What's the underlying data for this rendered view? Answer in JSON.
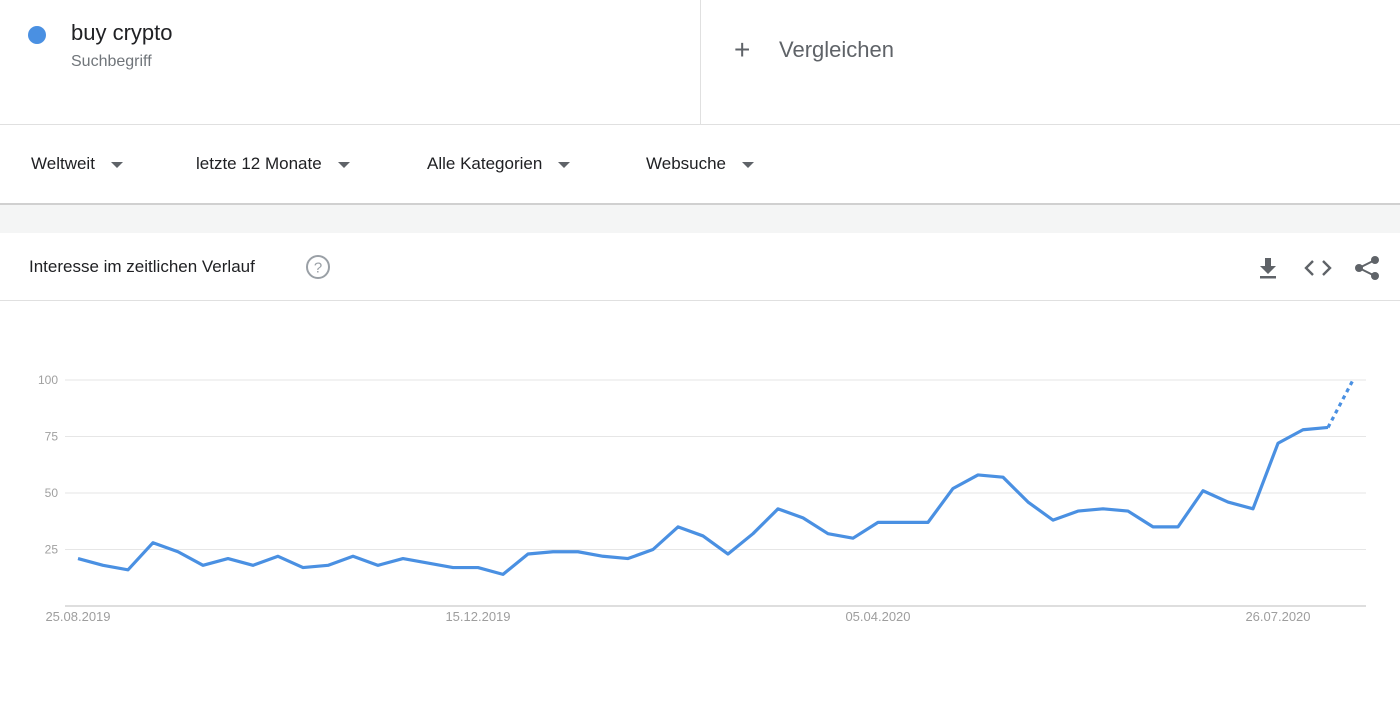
{
  "header": {
    "term_type": "Suchbegriff",
    "compare": "Vergleichen"
  },
  "filters": [
    "Weltweit",
    "letzte 12 Monate",
    "Alle Kategorien",
    "Websuche"
  ],
  "card": {
    "title": "Interesse im zeitlichen Verlauf"
  },
  "chart_data": {
    "type": "line",
    "categories": [
      "25.08.2019",
      null,
      null,
      null,
      null,
      null,
      null,
      null,
      null,
      null,
      null,
      null,
      null,
      null,
      null,
      null,
      "15.12.2019",
      null,
      null,
      null,
      null,
      null,
      null,
      null,
      null,
      null,
      null,
      null,
      null,
      null,
      null,
      null,
      "05.04.2020",
      null,
      null,
      null,
      null,
      null,
      null,
      null,
      null,
      null,
      null,
      null,
      null,
      null,
      null,
      null,
      "26.07.2020",
      null,
      null,
      null
    ],
    "series": [
      {
        "name": "buy crypto",
        "color": "#4a90e2",
        "values": [
          21,
          18,
          16,
          28,
          24,
          18,
          21,
          18,
          22,
          17,
          18,
          22,
          18,
          21,
          19,
          17,
          17,
          14,
          23,
          24,
          24,
          22,
          21,
          25,
          35,
          31,
          23,
          32,
          43,
          39,
          32,
          30,
          37,
          37,
          37,
          52,
          58,
          57,
          46,
          38,
          42,
          43,
          42,
          35,
          35,
          51,
          46,
          43,
          72,
          78,
          79,
          100
        ]
      }
    ],
    "ylim": [
      0,
      100
    ],
    "yticks": [
      25,
      50,
      75,
      100
    ],
    "grid": true,
    "dashed_last_segment": true
  }
}
